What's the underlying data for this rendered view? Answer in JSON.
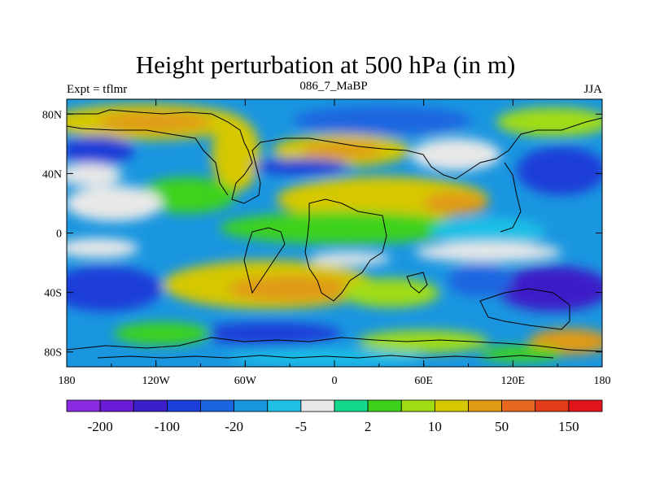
{
  "chart_data": {
    "type": "heatmap",
    "title": "Height perturbation at 500 hPa (in m)",
    "subtitle_left": "Expt = tflmr",
    "subtitle_center": "086_7_MaBP",
    "subtitle_right": "JJA",
    "x_ticks": [
      "180",
      "120W",
      "60W",
      "0",
      "60E",
      "120E",
      "180"
    ],
    "y_ticks": [
      "80N",
      "40N",
      "0",
      "40S",
      "80S"
    ],
    "x_range": [
      -180,
      180
    ],
    "y_range": [
      -90,
      90
    ],
    "colorbar": {
      "colors": [
        "#8a2be2",
        "#6a1bd6",
        "#3c1fc8",
        "#1c3ed8",
        "#1a66e0",
        "#1a96e0",
        "#1ec0e6",
        "#e8e8e8",
        "#14d88c",
        "#3cd21c",
        "#a0dc14",
        "#d6c800",
        "#e09a14",
        "#e6681e",
        "#e23c1a",
        "#e0141a"
      ],
      "labels": [
        "-200",
        "-100",
        "-20",
        "-5",
        "2",
        "10",
        "50",
        "150"
      ]
    }
  }
}
